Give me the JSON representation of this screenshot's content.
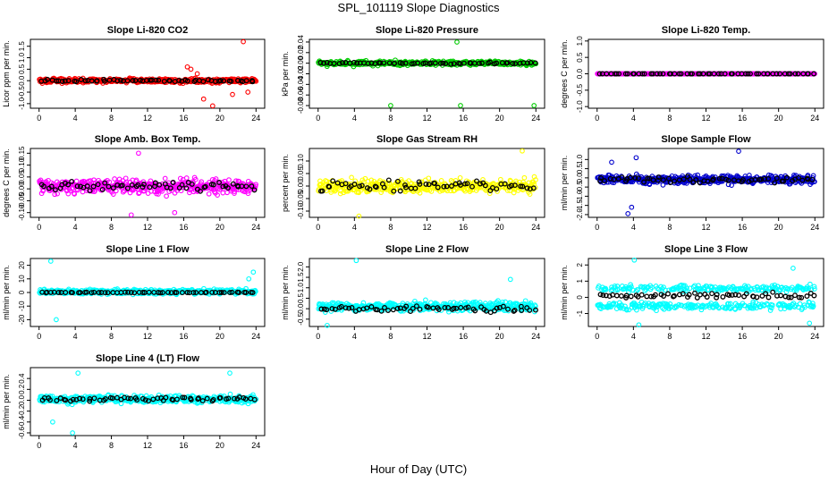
{
  "figure": {
    "title": "SPL_101119  Slope Diagnostics",
    "xlabel": "Hour of Day (UTC)"
  },
  "chart_data": [
    {
      "type": "scatter",
      "title": "Slope Li-820 CO2",
      "ylabel": "Licor ppm per min.",
      "xlim": [
        0,
        24
      ],
      "ylim": [
        -1.2,
        1.8
      ],
      "x_ticks": [
        0,
        4,
        8,
        12,
        16,
        20,
        24
      ],
      "y_ticks": [
        -1.0,
        -0.5,
        0.0,
        0.5,
        1.0,
        1.5
      ],
      "y_tick_labels": [
        "-1.0",
        "-0.5",
        "0.0",
        "0.5",
        "1.0",
        "1.5"
      ],
      "series": [
        {
          "color": "#ff0000",
          "center": 0.0,
          "spread": 0.2,
          "outliers": [
            [
              16.4,
              0.6
            ],
            [
              16.8,
              0.5
            ],
            [
              17.5,
              0.3
            ],
            [
              18.2,
              -0.8
            ],
            [
              19.2,
              -1.1
            ],
            [
              21.4,
              -0.6
            ],
            [
              22.6,
              1.7
            ],
            [
              23.1,
              -0.5
            ]
          ]
        },
        {
          "color": "#000000",
          "center": 0.0,
          "spread": 0.1
        }
      ]
    },
    {
      "type": "scatter",
      "title": "Slope Li-820 Pressure",
      "ylabel": "kPa per min.",
      "xlim": [
        0,
        24
      ],
      "ylim": [
        -0.085,
        0.045
      ],
      "x_ticks": [
        0,
        4,
        8,
        12,
        16,
        20,
        24
      ],
      "y_ticks": [
        -0.08,
        -0.06,
        -0.04,
        -0.02,
        0.0,
        0.02,
        0.04
      ],
      "y_tick_labels": [
        "-0.08",
        "-0.06",
        "-0.04",
        "-0.02",
        "0.00",
        "0.02",
        "0.04"
      ],
      "series": [
        {
          "color": "#00cc00",
          "center": 0.0,
          "spread": 0.008,
          "outliers": [
            [
              8.0,
              -0.08
            ],
            [
              15.7,
              -0.08
            ],
            [
              15.3,
              0.04
            ],
            [
              23.8,
              -0.08
            ]
          ]
        },
        {
          "color": "#000000",
          "center": 0.0,
          "spread": 0.003
        }
      ]
    },
    {
      "type": "scatter",
      "title": "Slope Li-820 Temp.",
      "ylabel": "degrees C per min.",
      "xlim": [
        0,
        24
      ],
      "ylim": [
        -1.05,
        1.05
      ],
      "x_ticks": [
        0,
        4,
        8,
        12,
        16,
        20,
        24
      ],
      "y_ticks": [
        -1.0,
        -0.5,
        0.0,
        0.5,
        1.0
      ],
      "y_tick_labels": [
        "-1.0",
        "-0.5",
        "0.0",
        "0.5",
        "1.0"
      ],
      "series": [
        {
          "color": "#ff00ff",
          "center": 0.0,
          "spread": 0.0
        },
        {
          "color": "#000000",
          "center": 0.0,
          "spread": 0.0
        }
      ]
    },
    {
      "type": "scatter",
      "title": "Slope Amb. Box Temp.",
      "ylabel": "degrees C per min.",
      "xlim": [
        0,
        24
      ],
      "ylim": [
        -0.12,
        0.17
      ],
      "x_ticks": [
        0,
        4,
        8,
        12,
        16,
        20,
        24
      ],
      "y_ticks": [
        -0.1,
        -0.05,
        0.0,
        0.05,
        0.1,
        0.15
      ],
      "y_tick_labels": [
        "-0.10",
        "-0.05",
        "0.00",
        "0.05",
        "0.10",
        "0.15"
      ],
      "series": [
        {
          "color": "#ff00ff",
          "center": 0.01,
          "spread": 0.06,
          "outliers": [
            [
              10.2,
              -0.11
            ],
            [
              11.0,
              0.15
            ],
            [
              15.0,
              -0.1
            ]
          ]
        },
        {
          "color": "#000000",
          "center": 0.01,
          "spread": 0.035
        }
      ]
    },
    {
      "type": "scatter",
      "title": "Slope Gas Stream RH",
      "ylabel": "percent per min.",
      "xlim": [
        0,
        24
      ],
      "ylim": [
        -0.125,
        0.15
      ],
      "x_ticks": [
        0,
        4,
        8,
        12,
        16,
        20,
        24
      ],
      "y_ticks": [
        -0.1,
        -0.05,
        0.0,
        0.05,
        0.1
      ],
      "y_tick_labels": [
        "-0.10",
        "-0.05",
        "0.00",
        "0.05",
        "0.10"
      ],
      "series": [
        {
          "color": "#ffff00",
          "center": 0.0,
          "spread": 0.055,
          "outliers": [
            [
              22.5,
              0.14
            ],
            [
              4.5,
              -0.12
            ]
          ]
        },
        {
          "color": "#000000",
          "center": 0.0,
          "spread": 0.04
        }
      ]
    },
    {
      "type": "scatter",
      "title": "Slope Sample Flow",
      "ylabel": "ml/min per min.",
      "xlim": [
        0,
        24
      ],
      "ylim": [
        -2.15,
        1.6
      ],
      "x_ticks": [
        0,
        4,
        8,
        12,
        16,
        20,
        24
      ],
      "y_ticks": [
        -2.0,
        -1.5,
        -1.0,
        -0.5,
        0.0,
        0.5,
        1.0
      ],
      "y_tick_labels": [
        "-2.0",
        "-1.5",
        "-1.0",
        "-0.5",
        "0.0",
        "0.5",
        "1.0"
      ],
      "series": [
        {
          "color": "#0000cc",
          "center": -0.1,
          "spread": 0.45,
          "outliers": [
            [
              3.4,
              -1.95
            ],
            [
              3.8,
              -1.6
            ],
            [
              4.3,
              1.1
            ],
            [
              15.6,
              1.45
            ],
            [
              1.6,
              0.85
            ]
          ]
        },
        {
          "color": "#000000",
          "center": -0.1,
          "spread": 0.3
        }
      ]
    },
    {
      "type": "scatter",
      "title": "Slope Line 1 Flow",
      "ylabel": "ml/min per min.",
      "xlim": [
        0,
        24
      ],
      "ylim": [
        -25,
        25
      ],
      "x_ticks": [
        0,
        4,
        8,
        12,
        16,
        20,
        24
      ],
      "y_ticks": [
        -20,
        -10,
        0,
        10,
        20
      ],
      "y_tick_labels": [
        "-20",
        "-10",
        "0",
        "10",
        "20"
      ],
      "series": [
        {
          "color": "#00ffff",
          "center": 0.5,
          "spread": 3.5,
          "outliers": [
            [
              1.3,
              23
            ],
            [
              1.9,
              -20
            ],
            [
              23.7,
              15
            ],
            [
              23.2,
              10
            ]
          ]
        },
        {
          "color": "#000000",
          "center": 0.0,
          "spread": 0.5
        }
      ]
    },
    {
      "type": "scatter",
      "title": "Slope Line 2 Flow",
      "ylabel": "ml/min per min.",
      "xlim": [
        0,
        24
      ],
      "ylim": [
        -0.85,
        2.4
      ],
      "x_ticks": [
        0,
        4,
        8,
        12,
        16,
        20,
        24
      ],
      "y_ticks": [
        -0.5,
        0.0,
        0.5,
        1.0,
        1.5,
        2.0
      ],
      "y_tick_labels": [
        "-0.5",
        "0.0",
        "0.5",
        "1.0",
        "1.5",
        "2.0"
      ],
      "series": [
        {
          "color": "#00ffff",
          "center": 0.1,
          "spread": 0.45,
          "outliers": [
            [
              4.2,
              2.3
            ],
            [
              1.0,
              -0.8
            ],
            [
              21.2,
              1.4
            ]
          ]
        },
        {
          "color": "#000000",
          "center": 0.0,
          "spread": 0.3
        }
      ]
    },
    {
      "type": "scatter",
      "title": "Slope Line 3 Flow",
      "ylabel": "ml/min per min.",
      "xlim": [
        0,
        24
      ],
      "ylim": [
        -1.8,
        2.4
      ],
      "x_ticks": [
        0,
        4,
        8,
        12,
        16,
        20,
        24
      ],
      "y_ticks": [
        -1,
        0,
        1,
        2
      ],
      "y_tick_labels": [
        "-1",
        "0",
        "1",
        "2"
      ],
      "series": [
        {
          "color": "#00ffff",
          "center": 0.0,
          "spread": 0.85,
          "bimodal": true,
          "outliers": [
            [
              4.1,
              2.3
            ],
            [
              4.6,
              -1.7
            ],
            [
              23.4,
              -1.6
            ],
            [
              21.6,
              1.8
            ]
          ]
        },
        {
          "color": "#000000",
          "center": 0.1,
          "spread": 0.35
        }
      ]
    },
    {
      "type": "scatter",
      "title": "Slope Line 4 (LT) Flow",
      "ylabel": "ml/min per min.",
      "xlim": [
        0,
        24
      ],
      "ylim": [
        -0.65,
        0.6
      ],
      "x_ticks": [
        0,
        4,
        8,
        12,
        16,
        20,
        24
      ],
      "y_ticks": [
        -0.6,
        -0.4,
        -0.2,
        0.0,
        0.2,
        0.4
      ],
      "y_tick_labels": [
        "-0.6",
        "-0.4",
        "-0.2",
        "0.0",
        "0.2",
        "0.4"
      ],
      "series": [
        {
          "color": "#00ffff",
          "center": 0.02,
          "spread": 0.14,
          "outliers": [
            [
              3.7,
              -0.6
            ],
            [
              1.5,
              -0.4
            ],
            [
              21.1,
              0.5
            ],
            [
              4.3,
              0.5
            ]
          ]
        },
        {
          "color": "#000000",
          "center": 0.02,
          "spread": 0.1
        }
      ]
    }
  ]
}
